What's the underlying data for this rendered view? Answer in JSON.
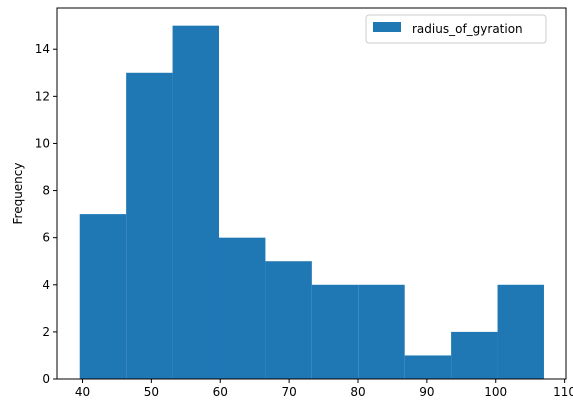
{
  "chart_data": {
    "type": "bar",
    "chart_kind": "histogram",
    "title": "",
    "xlabel": "",
    "ylabel": "Frequency",
    "xlim": [
      36.3,
      110.2
    ],
    "ylim": [
      0,
      15.75
    ],
    "x_ticks": [
      40,
      50,
      60,
      70,
      80,
      90,
      100,
      110
    ],
    "y_ticks": [
      0,
      2,
      4,
      6,
      8,
      10,
      12,
      14
    ],
    "bin_edges": [
      39.6,
      46.34,
      53.08,
      59.82,
      66.56,
      73.3,
      80.04,
      86.78,
      93.52,
      100.26,
      107.0
    ],
    "series": [
      {
        "name": "radius_of_gyration",
        "color": "#1f77b4",
        "values": [
          7,
          13,
          15,
          6,
          5,
          4,
          4,
          1,
          2,
          4
        ]
      }
    ],
    "legend": {
      "position": "top-right",
      "entries": [
        "radius_of_gyration"
      ]
    },
    "grid": false
  }
}
